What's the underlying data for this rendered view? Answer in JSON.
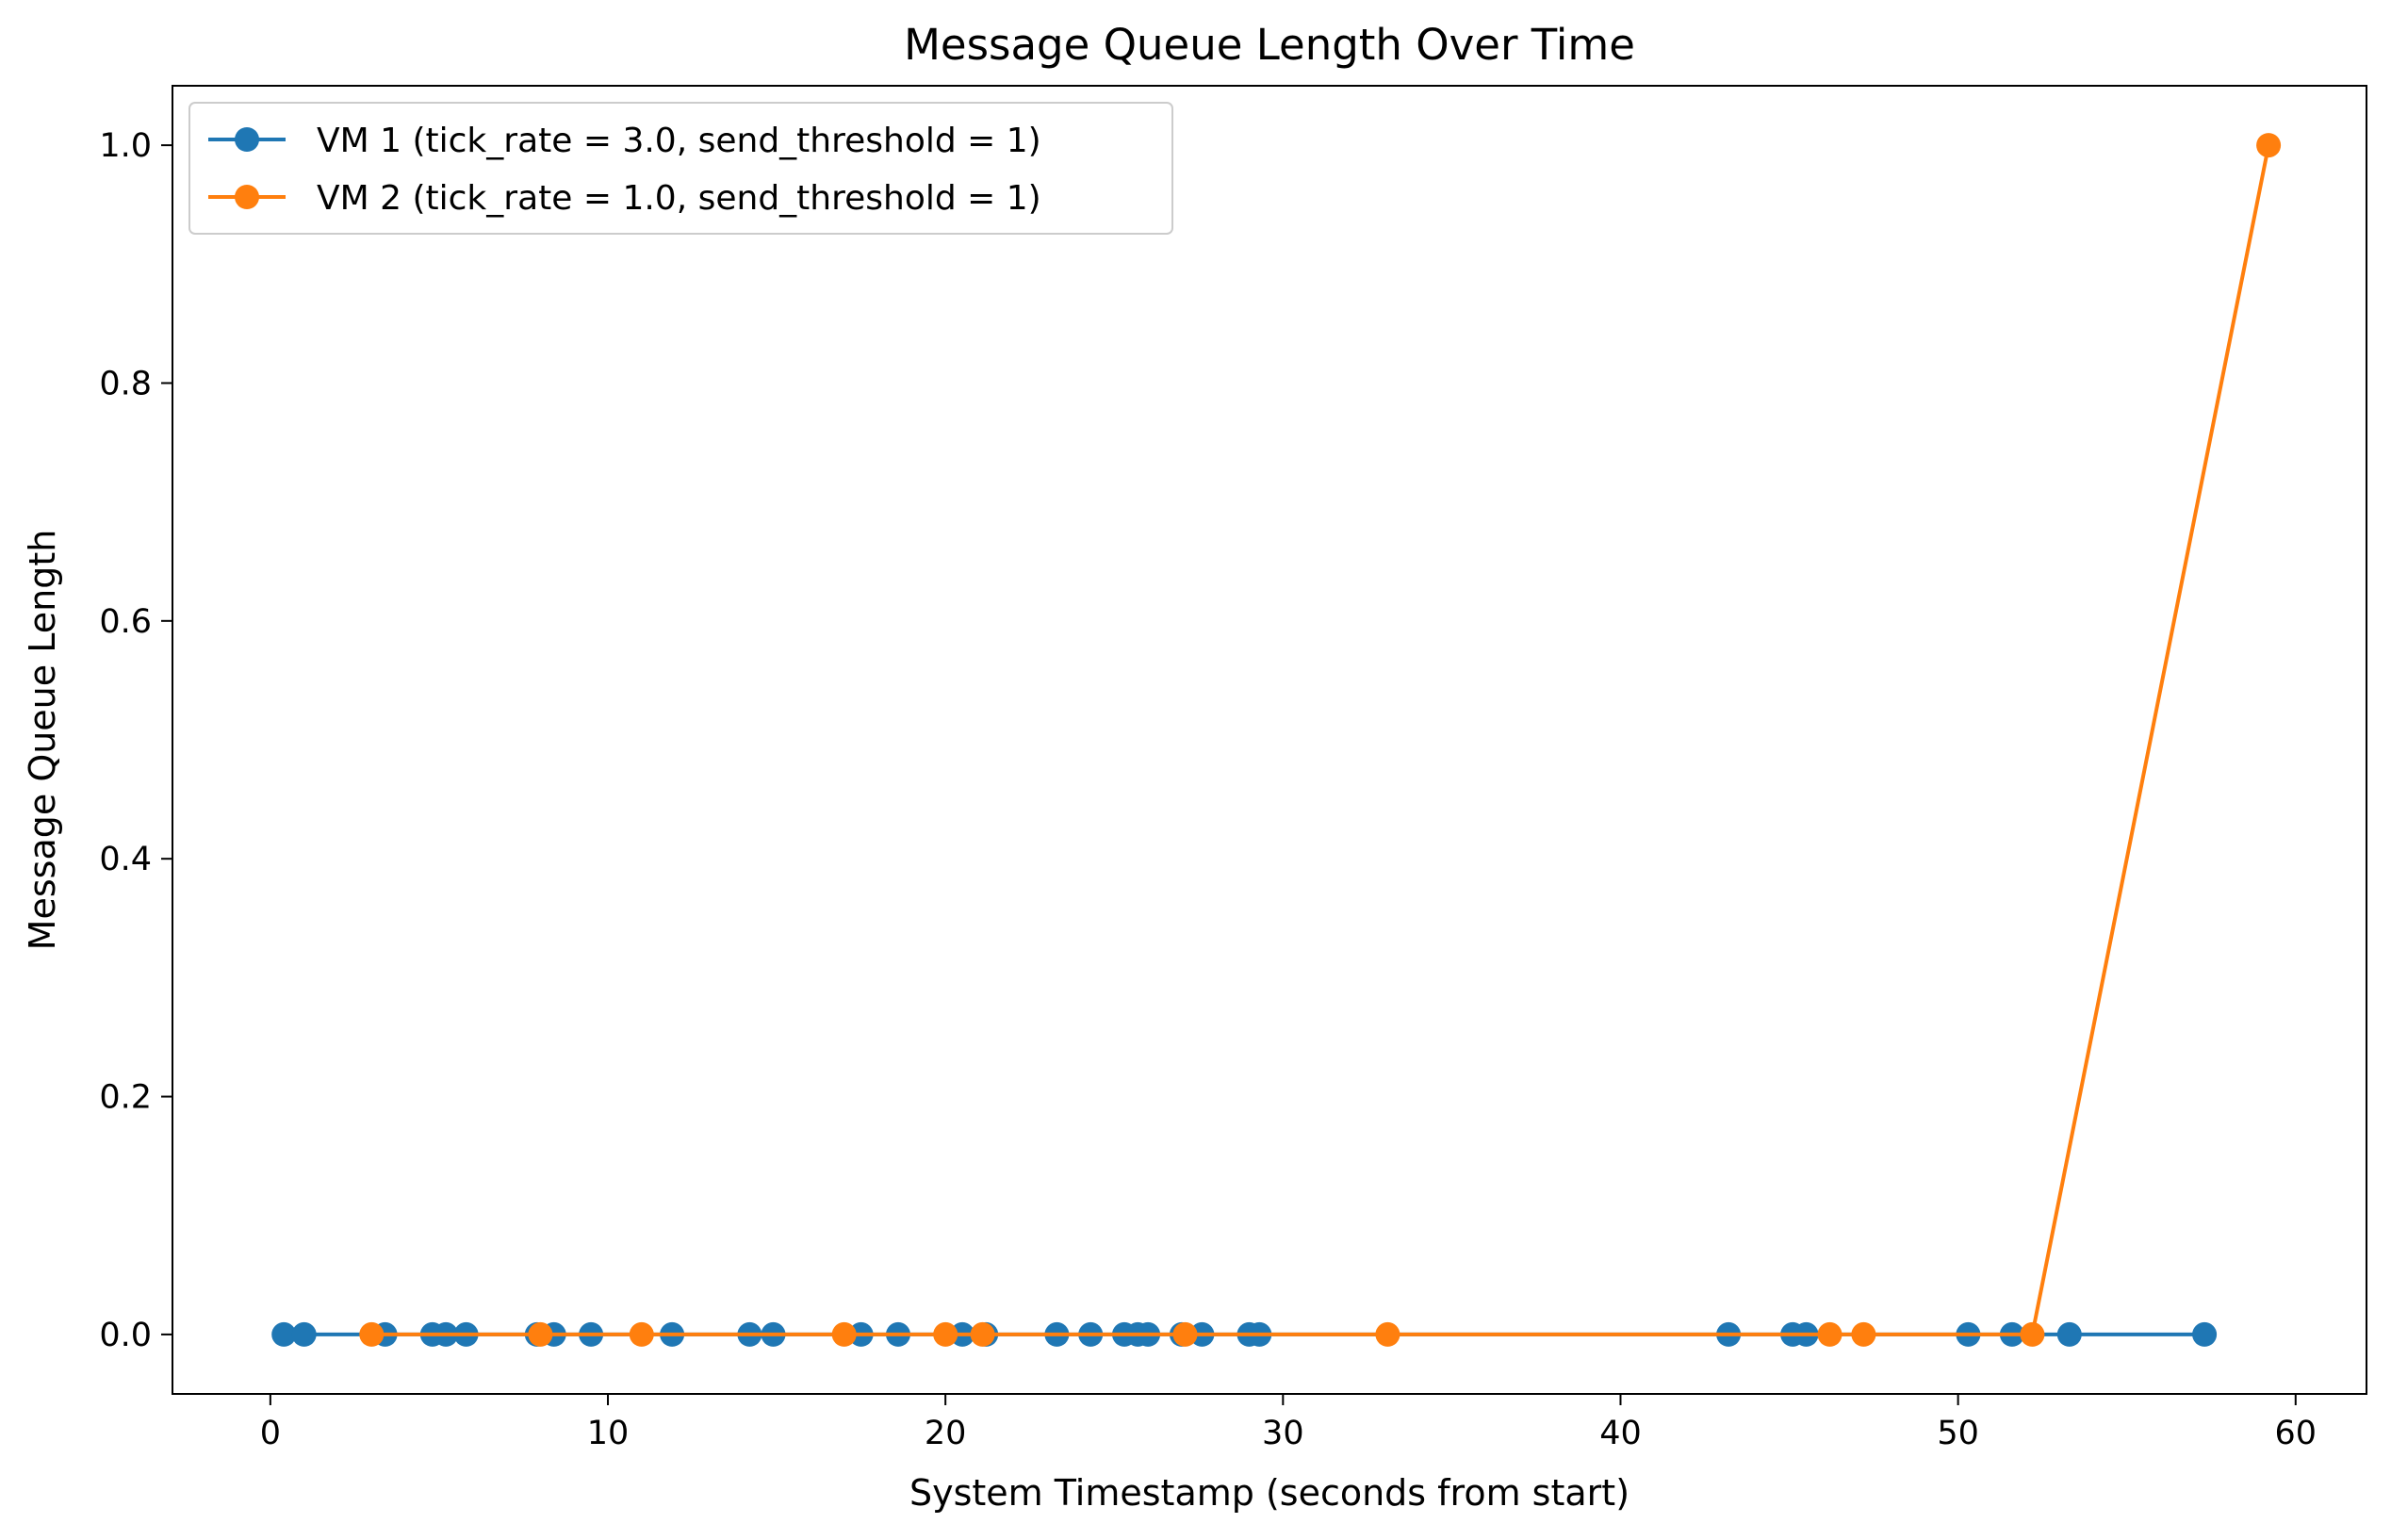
{
  "chart_data": {
    "type": "line",
    "title": "Message Queue Length Over Time",
    "xlabel": "System Timestamp (seconds from start)",
    "ylabel": "Message Queue Length",
    "xlim": [
      -2.9,
      62.1
    ],
    "ylim": [
      -0.05,
      1.05
    ],
    "xticks": [
      0,
      10,
      20,
      30,
      40,
      50,
      60
    ],
    "xtick_labels": [
      "0",
      "10",
      "20",
      "30",
      "40",
      "50",
      "60"
    ],
    "yticks": [
      0.0,
      0.2,
      0.4,
      0.6,
      0.8,
      1.0
    ],
    "ytick_labels": [
      "0.0",
      "0.2",
      "0.4",
      "0.6",
      "0.8",
      "1.0"
    ],
    "grid": false,
    "legend_position": "top-left",
    "series": [
      {
        "name": "VM 1 (tick_rate = 3.0, send_threshold = 1)",
        "color": "#1f77b4",
        "marker": "circle",
        "x": [
          0.4,
          1.0,
          3.4,
          4.8,
          5.2,
          5.8,
          7.9,
          8.4,
          9.5,
          11.9,
          14.2,
          14.9,
          17.5,
          18.6,
          20.5,
          21.2,
          23.3,
          24.3,
          25.3,
          25.7,
          26.0,
          27.0,
          27.6,
          29.0,
          29.3,
          43.2,
          45.1,
          45.5,
          50.3,
          51.6,
          53.3,
          57.3
        ],
        "y": [
          0,
          0,
          0,
          0,
          0,
          0,
          0,
          0,
          0,
          0,
          0,
          0,
          0,
          0,
          0,
          0,
          0,
          0,
          0,
          0,
          0,
          0,
          0,
          0,
          0,
          0,
          0,
          0,
          0,
          0,
          0,
          0
        ]
      },
      {
        "name": "VM 2 (tick_rate = 1.0, send_threshold = 1)",
        "color": "#ff7f0e",
        "marker": "circle",
        "x": [
          3.0,
          8.0,
          11.0,
          17.0,
          20.0,
          21.1,
          27.1,
          33.1,
          46.2,
          47.2,
          52.2,
          59.2
        ],
        "y": [
          0,
          0,
          0,
          0,
          0,
          0,
          0,
          0,
          0,
          0,
          0,
          1.0
        ]
      }
    ]
  }
}
